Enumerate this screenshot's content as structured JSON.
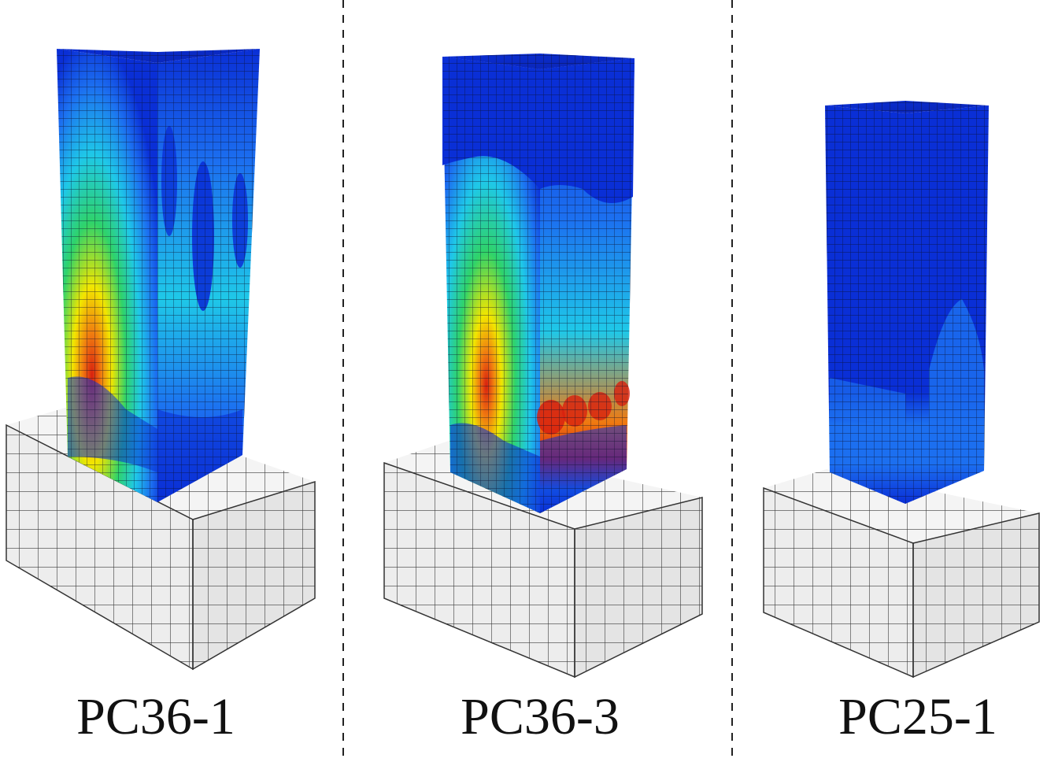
{
  "figure": {
    "panels": [
      {
        "id": "pc36-1",
        "label": "PC36-1"
      },
      {
        "id": "pc36-3",
        "label": "PC36-3"
      },
      {
        "id": "pc25-1",
        "label": "PC25-1"
      }
    ],
    "colors": {
      "base_fill": "#f2f2f2",
      "base_grid": "#3a3a3a",
      "mesh_line": "#0a0f2a",
      "divider": "#222222",
      "contour_blue": "#0a2fd6",
      "contour_mid_blue": "#1c6ff0",
      "contour_cyan": "#1fc8e8",
      "contour_green": "#2fd36a",
      "contour_yellow": "#f2e600",
      "contour_orange": "#f07a10",
      "contour_red": "#d8200f"
    }
  }
}
